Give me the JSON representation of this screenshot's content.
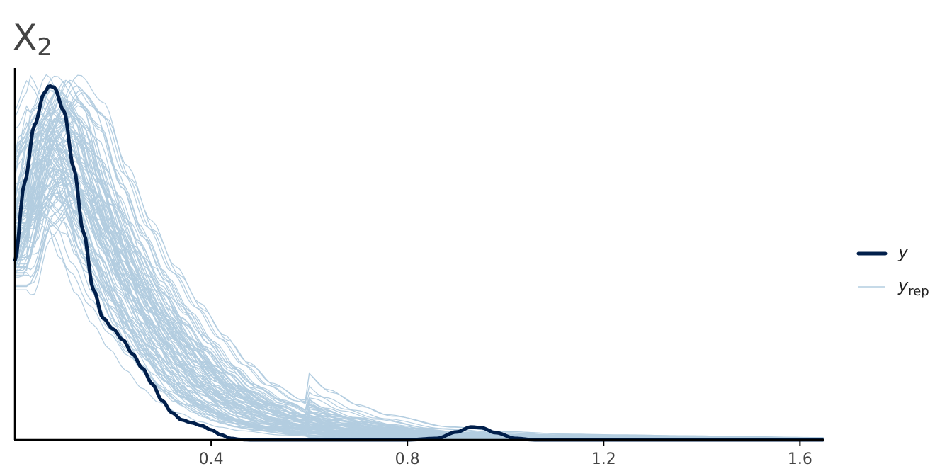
{
  "chart_data": {
    "type": "line",
    "title": {
      "main": "X",
      "subscript": "2"
    },
    "xlabel": "",
    "ylabel": "",
    "xlim": [
      0,
      1.65
    ],
    "ylim": [
      0,
      5.2
    ],
    "x_ticks": [
      0.4,
      0.8,
      1.2,
      1.6
    ],
    "x_tick_labels": [
      "0.4",
      "0.8",
      "1.2",
      "1.6"
    ],
    "y_axis_tick_labels": false,
    "grid": false,
    "legend": {
      "position": "right",
      "entries": [
        {
          "label": "y",
          "subscript": "",
          "series": "y"
        },
        {
          "label": "y",
          "subscript": "rep",
          "series": "y_rep"
        }
      ]
    },
    "colors": {
      "y": "#011f4b",
      "y_rep": "#b3cde0",
      "axis": "#000000",
      "text": "#444444"
    },
    "series": [
      {
        "name": "y",
        "x": [
          0.0,
          0.02,
          0.04,
          0.06,
          0.07,
          0.08,
          0.1,
          0.12,
          0.14,
          0.16,
          0.18,
          0.2,
          0.22,
          0.24,
          0.26,
          0.28,
          0.3,
          0.32,
          0.34,
          0.36,
          0.38,
          0.4,
          0.42,
          0.44,
          0.46,
          0.48,
          0.5,
          0.55,
          0.6,
          0.7,
          0.8,
          0.86,
          0.9,
          0.93,
          0.95,
          0.98,
          1.02,
          1.06,
          1.2,
          1.4,
          1.65
        ],
        "y": [
          2.5,
          3.6,
          4.4,
          4.85,
          4.95,
          4.93,
          4.6,
          3.8,
          2.9,
          2.1,
          1.7,
          1.55,
          1.4,
          1.2,
          1.0,
          0.78,
          0.55,
          0.38,
          0.28,
          0.24,
          0.2,
          0.14,
          0.07,
          0.02,
          0.005,
          0.0,
          0.0,
          0.0,
          0.0,
          0.0,
          0.0,
          0.02,
          0.11,
          0.18,
          0.17,
          0.1,
          0.02,
          0.0,
          0.0,
          0.0,
          0.0
        ]
      },
      {
        "name": "y_rep",
        "replicates": 100,
        "x": [
          0.0,
          0.04,
          0.08,
          0.12,
          0.16,
          0.2,
          0.24,
          0.28,
          0.32,
          0.36,
          0.4,
          0.45,
          0.5,
          0.55,
          0.6,
          0.7,
          0.8,
          0.9,
          1.0,
          1.1,
          1.2,
          1.3,
          1.4,
          1.5,
          1.65
        ],
        "y": [
          2.6,
          3.6,
          4.0,
          3.7,
          3.0,
          2.4,
          1.9,
          1.5,
          1.15,
          0.85,
          0.62,
          0.44,
          0.3,
          0.21,
          0.15,
          0.08,
          0.05,
          0.035,
          0.03,
          0.025,
          0.02,
          0.015,
          0.01,
          0.008,
          0.005
        ]
      }
    ]
  }
}
